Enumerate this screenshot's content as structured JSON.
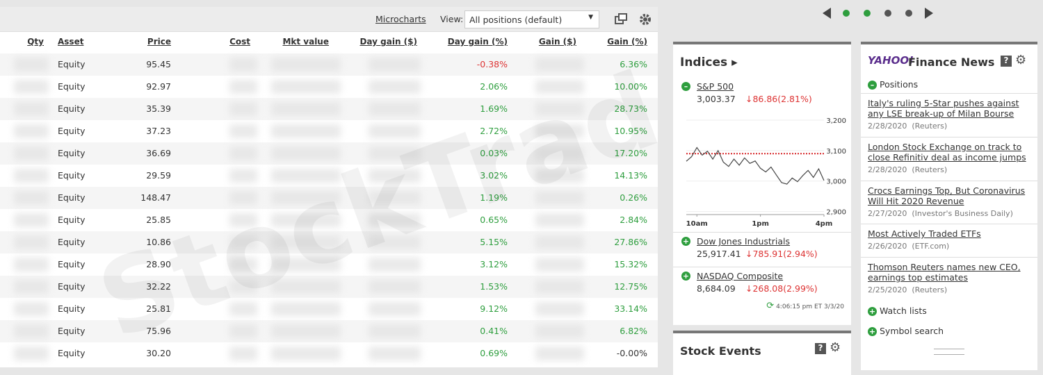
{
  "toolbar": {
    "microcharts": "Microcharts",
    "view_label": "View:",
    "view_value": "All positions (default)"
  },
  "watermark": "StockTrader",
  "table": {
    "headers": [
      "Qty",
      "Asset",
      "Price",
      "Cost",
      "Mkt value",
      "Day gain ($)",
      "Day gain (%)",
      "Gain ($)",
      "Gain (%)"
    ],
    "rows": [
      [
        "Equity",
        "95.45",
        "-0.38%",
        "6.36%"
      ],
      [
        "Equity",
        "92.97",
        "2.06%",
        "10.00%"
      ],
      [
        "Equity",
        "35.39",
        "1.69%",
        "28.73%"
      ],
      [
        "Equity",
        "37.23",
        "2.72%",
        "10.95%"
      ],
      [
        "Equity",
        "36.69",
        "0.03%",
        "17.20%"
      ],
      [
        "Equity",
        "29.59",
        "3.02%",
        "14.13%"
      ],
      [
        "Equity",
        "148.47",
        "1.19%",
        "0.26%"
      ],
      [
        "Equity",
        "25.85",
        "0.65%",
        "2.84%"
      ],
      [
        "Equity",
        "10.86",
        "5.15%",
        "27.86%"
      ],
      [
        "Equity",
        "28.90",
        "3.12%",
        "15.32%"
      ],
      [
        "Equity",
        "32.22",
        "1.53%",
        "12.75%"
      ],
      [
        "Equity",
        "25.81",
        "9.12%",
        "33.14%"
      ],
      [
        "Equity",
        "75.96",
        "0.41%",
        "6.82%"
      ],
      [
        "Equity",
        "30.20",
        "0.69%",
        "-0.00%"
      ]
    ]
  },
  "indices": {
    "title": "Indices ▸",
    "items": [
      {
        "name": "S&P 500",
        "value": "3,003.37",
        "change": "↓86.86(2.81%)"
      },
      {
        "name": "Dow Jones Industrials",
        "value": "25,917.41",
        "change": "↓785.91(2.94%)"
      },
      {
        "name": "NASDAQ Composite",
        "value": "8,684.09",
        "change": "↓268.08(2.99%)"
      }
    ],
    "updated": "4:06:15 pm ET 3/3/20",
    "chart_data": {
      "type": "line",
      "x": [
        9.5,
        9.75,
        10,
        10.25,
        10.5,
        10.75,
        11,
        11.25,
        11.5,
        11.75,
        12,
        12.25,
        12.5,
        12.75,
        13,
        13.25,
        13.5,
        13.75,
        14,
        14.25,
        14.5,
        14.75,
        15,
        15.25,
        15.5,
        15.75,
        16
      ],
      "values": [
        3065,
        3080,
        3110,
        3085,
        3098,
        3072,
        3100,
        3062,
        3048,
        3072,
        3052,
        3076,
        3058,
        3066,
        3042,
        3030,
        3046,
        3020,
        2995,
        2990,
        3010,
        2998,
        3018,
        3035,
        3012,
        3040,
        3002
      ],
      "color": "#444444",
      "reference": 3090,
      "reference_color": "#d62728",
      "xlim": [
        9.5,
        16
      ],
      "xticks": [
        {
          "value": 10,
          "label": "10am"
        },
        {
          "value": 13,
          "label": "1pm"
        },
        {
          "value": 16,
          "label": "4pm"
        }
      ],
      "ylim": [
        2890,
        3225
      ],
      "yticks": [
        {
          "value": 3200,
          "label": "3,200"
        },
        {
          "value": 3100,
          "label": "3,100"
        },
        {
          "value": 3000,
          "label": "3,000"
        },
        {
          "value": 2900,
          "label": "2,900"
        }
      ]
    }
  },
  "news": {
    "logo": "YAHOO!",
    "title": "Finance News",
    "positions": "Positions",
    "items": [
      {
        "headline": "Italy's ruling 5-Star pushes against any LSE break-up of Milan Bourse",
        "meta": "2/28/2020  (Reuters)"
      },
      {
        "headline": "London Stock Exchange on track to close Refinitiv deal as income jumps",
        "meta": "2/28/2020  (Reuters)"
      },
      {
        "headline": "Crocs Earnings Top, But Coronavirus Will Hit 2020 Revenue",
        "meta": "2/27/2020  (Investor's Business Daily)"
      },
      {
        "headline": "Most Actively Traded ETFs",
        "meta": "2/26/2020  (ETF.com)"
      },
      {
        "headline": "Thomson Reuters names new CEO, earnings top estimates",
        "meta": "2/25/2020  (Reuters)"
      }
    ],
    "watch_lists": "Watch lists",
    "symbol_search": "Symbol search"
  },
  "events": {
    "title": "Stock Events"
  }
}
